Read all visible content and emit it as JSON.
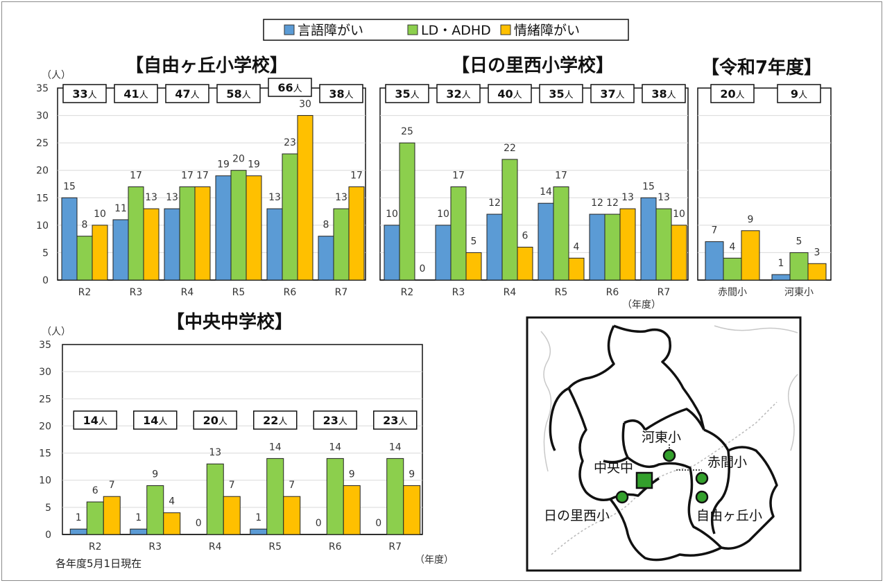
{
  "legend": [
    "言語障がい",
    "LD・ADHD",
    "情緒障がい"
  ],
  "colors": {
    "speech": "#5b9bd5",
    "ldadhd": "#8ccf4d",
    "emotional": "#ffc000"
  },
  "y_unit": "（人）",
  "x_unit": "（年度）",
  "note": "各年度5月1日現在",
  "chart_data": [
    {
      "type": "bar",
      "title": "【自由ヶ丘小学校】",
      "categories": [
        "R2",
        "R3",
        "R4",
        "R5",
        "R6",
        "R7"
      ],
      "series": [
        {
          "name": "言語障がい",
          "values": [
            15,
            11,
            13,
            19,
            13,
            8
          ]
        },
        {
          "name": "LD・ADHD",
          "values": [
            8,
            17,
            17,
            20,
            23,
            13
          ]
        },
        {
          "name": "情緒障がい",
          "values": [
            10,
            13,
            17,
            19,
            30,
            17
          ]
        }
      ],
      "totals": [
        "33",
        "41",
        "47",
        "58",
        "66",
        "38"
      ],
      "ylabel": "（人）",
      "ylim": [
        0,
        35
      ],
      "yticks": [
        0,
        5,
        10,
        15,
        20,
        25,
        30,
        35
      ]
    },
    {
      "type": "bar",
      "title": "【日の里西小学校】",
      "categories": [
        "R2",
        "R3",
        "R4",
        "R5",
        "R6",
        "R7"
      ],
      "series": [
        {
          "name": "言語障がい",
          "values": [
            10,
            10,
            12,
            14,
            12,
            15
          ]
        },
        {
          "name": "LD・ADHD",
          "values": [
            25,
            17,
            22,
            17,
            12,
            13
          ]
        },
        {
          "name": "情緒障がい",
          "values": [
            0,
            5,
            6,
            4,
            13,
            10
          ]
        }
      ],
      "totals": [
        "35",
        "32",
        "40",
        "35",
        "37",
        "38"
      ],
      "xlabel": "（年度）",
      "ylim": [
        0,
        35
      ]
    },
    {
      "type": "bar",
      "title": "【令和7年度】",
      "categories": [
        "赤間小",
        "河東小"
      ],
      "series": [
        {
          "name": "言語障がい",
          "values": [
            7,
            1
          ]
        },
        {
          "name": "LD・ADHD",
          "values": [
            4,
            5
          ]
        },
        {
          "name": "情緒障がい",
          "values": [
            9,
            3
          ]
        }
      ],
      "totals": [
        "20",
        "9"
      ],
      "ylim": [
        0,
        35
      ]
    },
    {
      "type": "bar",
      "title": "【中央中学校】",
      "categories": [
        "R2",
        "R3",
        "R4",
        "R5",
        "R6",
        "R7"
      ],
      "series": [
        {
          "name": "言語障がい",
          "values": [
            1,
            1,
            0,
            1,
            0,
            0
          ]
        },
        {
          "name": "LD・ADHD",
          "values": [
            6,
            9,
            13,
            14,
            14,
            14
          ]
        },
        {
          "name": "情緒障がい",
          "values": [
            7,
            4,
            7,
            7,
            9,
            9
          ]
        }
      ],
      "totals": [
        "14",
        "14",
        "20",
        "22",
        "23",
        "23"
      ],
      "ylabel": "（人）",
      "xlabel": "（年度）",
      "ylim": [
        0,
        35
      ],
      "yticks": [
        0,
        5,
        10,
        15,
        20,
        25,
        30,
        35
      ]
    }
  ],
  "total_suffix": "人",
  "map": {
    "labels": [
      "河東小",
      "中央中",
      "赤間小",
      "日の里西小",
      "自由ヶ丘小"
    ]
  }
}
